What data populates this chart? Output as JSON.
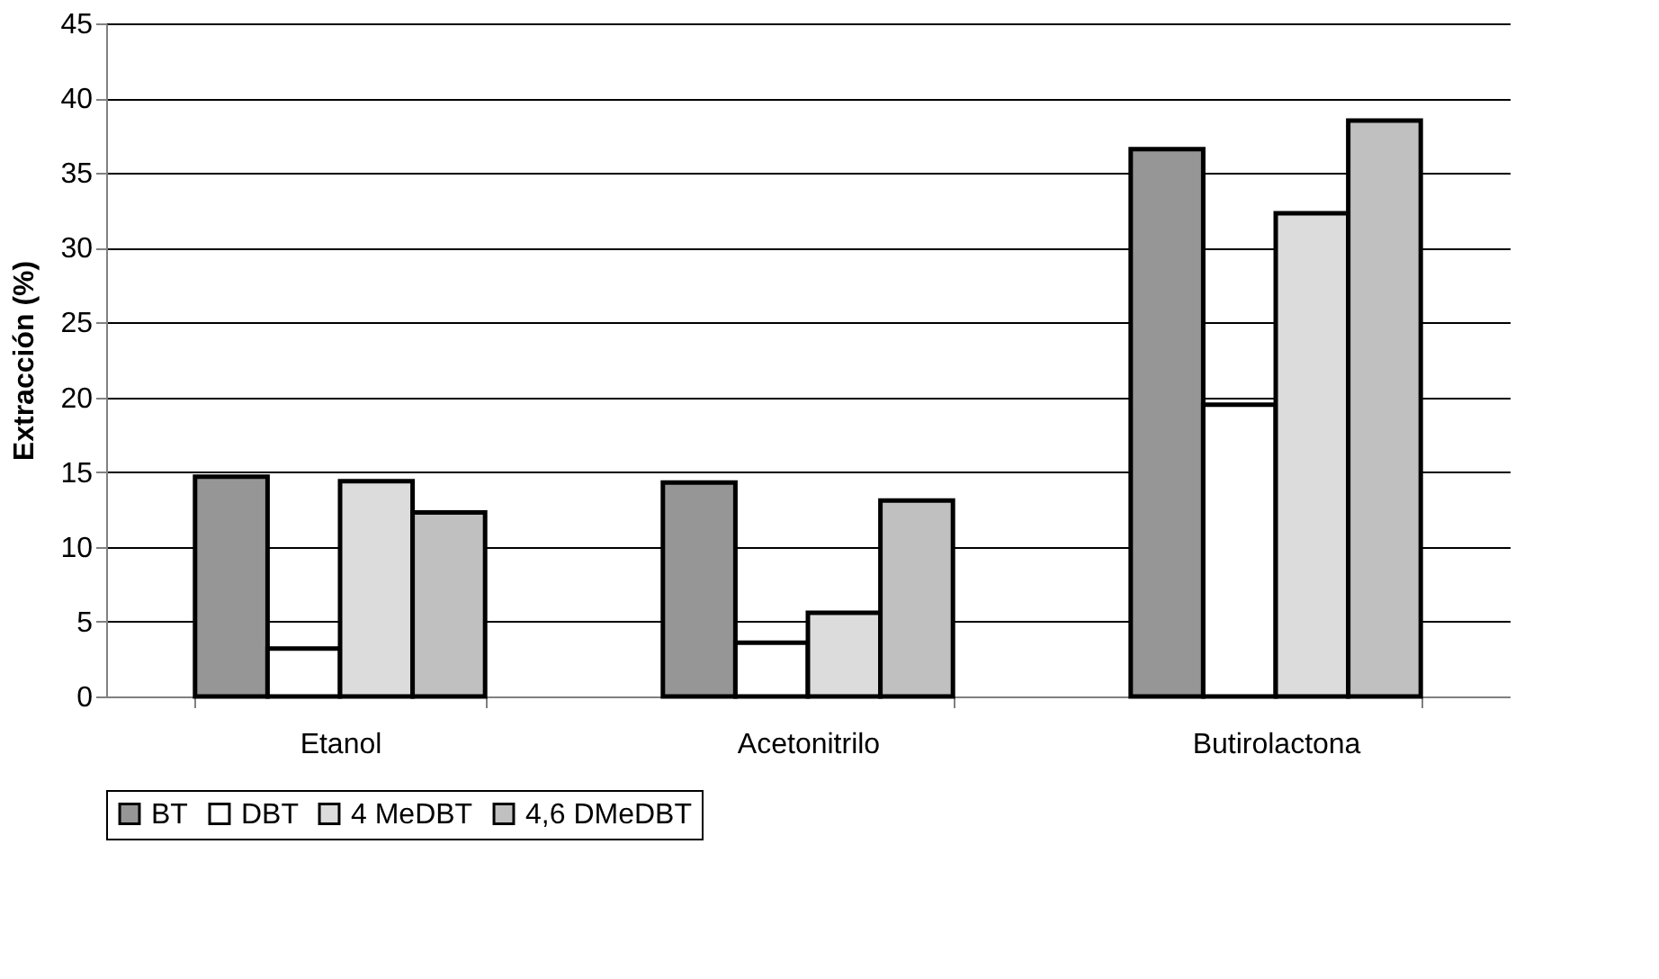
{
  "chart_data": {
    "type": "bar",
    "ylabel": "Extracción (%)",
    "categories": [
      "Etanol",
      "Acetonitrilo",
      "Butirolactona"
    ],
    "series": [
      {
        "name": "BT",
        "color": "#969696",
        "values": [
          14.7,
          14.3,
          36.6
        ]
      },
      {
        "name": "DBT",
        "color": "#ffffff",
        "values": [
          3.2,
          3.6,
          19.5
        ]
      },
      {
        "name": "4 MeDBT",
        "color": "#dcdcdc",
        "values": [
          14.4,
          5.6,
          32.3
        ]
      },
      {
        "name": "4,6 DMeDBT",
        "color": "#c0c0c0",
        "values": [
          12.3,
          13.1,
          38.5
        ]
      }
    ],
    "ylim": [
      0,
      45
    ],
    "yticks": [
      0,
      5,
      10,
      15,
      20,
      25,
      30,
      35,
      40,
      45
    ],
    "grid": "y",
    "legend": "bottom"
  }
}
